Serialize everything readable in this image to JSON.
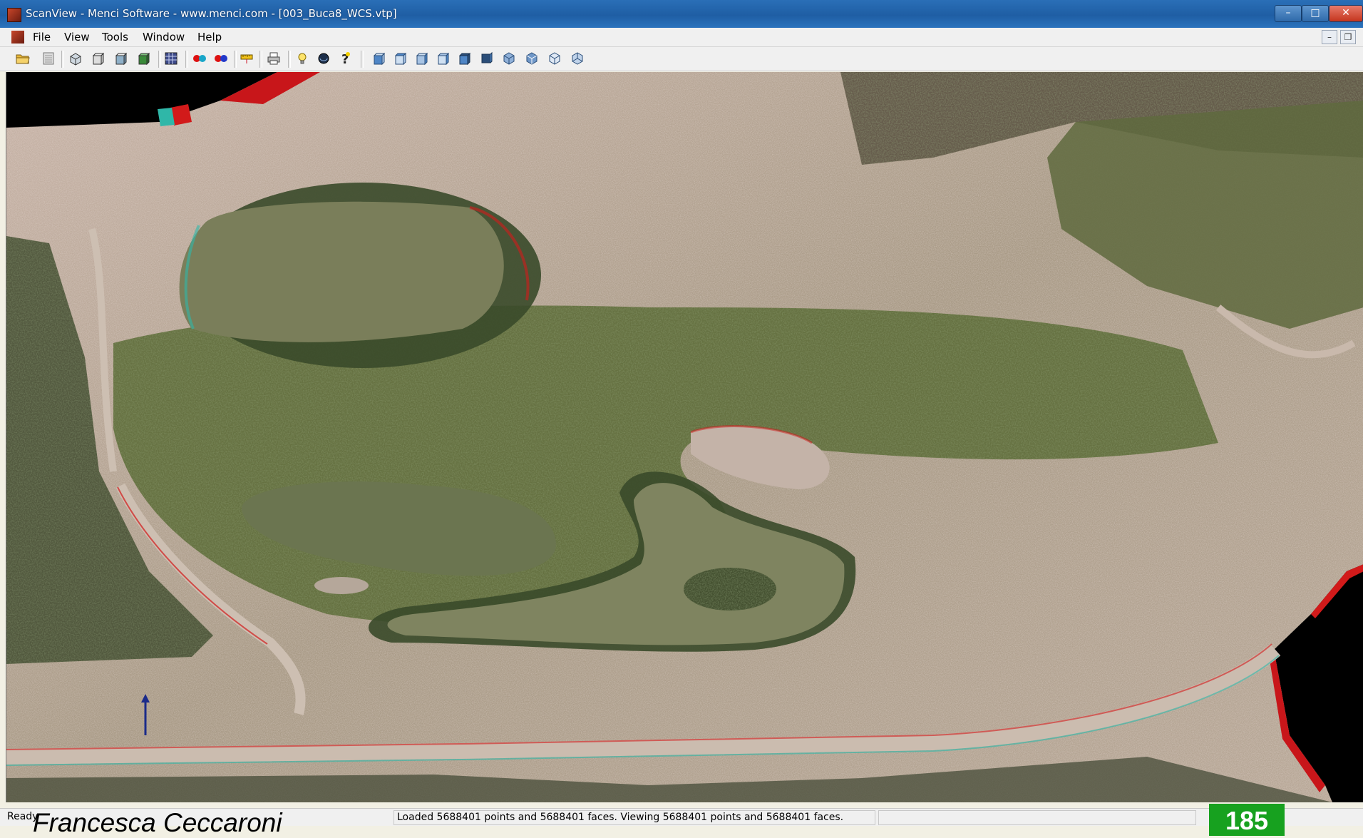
{
  "window": {
    "title": "ScanView - Menci Software - www.menci.com - [003_Buca8_WCS.vtp]",
    "controls": {
      "minimize": "–",
      "maximize": "□",
      "close": "✕"
    }
  },
  "menu": {
    "items": [
      "File",
      "View",
      "Tools",
      "Window",
      "Help"
    ],
    "mdi_controls": {
      "minimize": "–",
      "restore": "❐"
    }
  },
  "toolbar": {
    "icons": [
      "open-folder-icon",
      "list-icon",
      "box-view-icon",
      "cube-icon",
      "cube-alt-icon",
      "cube-color-icon",
      "grid-icon",
      "anaglyph-red-cyan-icon",
      "anaglyph-red-blue-icon",
      "measure-icon",
      "print-icon",
      "lightbulb-icon",
      "sphere-icon",
      "help-icon",
      "view-front-icon",
      "view-top-icon",
      "view-left-icon",
      "view-right-icon",
      "view-bottom-icon",
      "view-back-icon",
      "view-iso1-icon",
      "view-iso2-icon",
      "view-iso3-icon",
      "view-iso4-icon"
    ]
  },
  "viewport": {
    "description_free": true,
    "accent_colors": {
      "anaglyph_red": "#d21a1a",
      "anaglyph_cyan": "#2fb7a8",
      "water": "#7a7e5a",
      "grass": "#5d6b38",
      "sand": "#c9b9a6"
    }
  },
  "status": {
    "ready": "Ready",
    "message": "Loaded 5688401 points and 5688401 faces. Viewing 5688401 points and 5688401 faces.",
    "extra": ""
  },
  "footer": {
    "author": "Francesca Ceccaroni",
    "page_number": "185"
  }
}
